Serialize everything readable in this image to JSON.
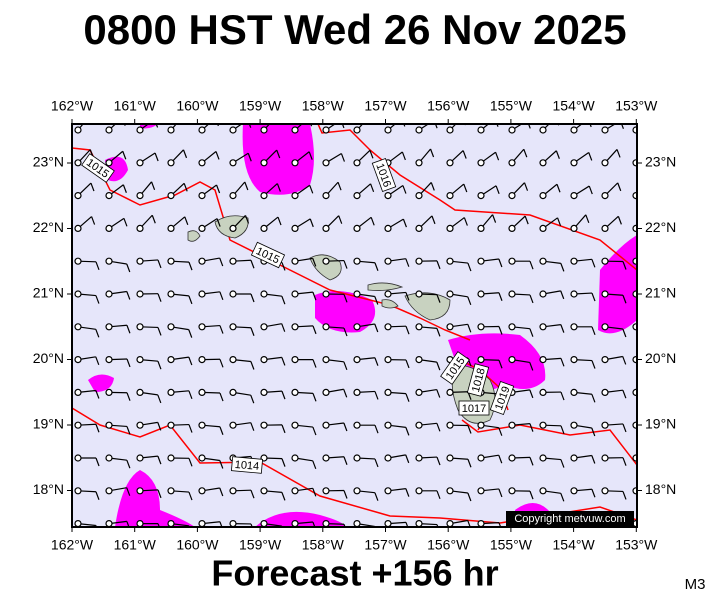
{
  "title": "0800 HST Wed 26 Nov 2025",
  "map": {
    "lon_ticks": [
      {
        "value": 162,
        "label": "162°W"
      },
      {
        "value": 161,
        "label": "161°W"
      },
      {
        "value": 160,
        "label": "160°W"
      },
      {
        "value": 159,
        "label": "159°W"
      },
      {
        "value": 158,
        "label": "158°W"
      },
      {
        "value": 157,
        "label": "157°W"
      },
      {
        "value": 156,
        "label": "156°W"
      },
      {
        "value": 155,
        "label": "155°W"
      },
      {
        "value": 154,
        "label": "154°W"
      },
      {
        "value": 153,
        "label": "153°W"
      }
    ],
    "lat_ticks": [
      {
        "value": 23,
        "label": "23°N"
      },
      {
        "value": 22,
        "label": "22°N"
      },
      {
        "value": 21,
        "label": "21°N"
      },
      {
        "value": 20,
        "label": "20°N"
      },
      {
        "value": 19,
        "label": "19°N"
      },
      {
        "value": 18,
        "label": "18°N"
      }
    ],
    "isobar_labels": [
      "1015",
      "1016",
      "1015",
      "1014",
      "1015",
      "1018",
      "1017",
      "1019"
    ],
    "copyright": "Copyright metvuw.com"
  },
  "footer": "Forecast +156 hr",
  "model": "M3"
}
